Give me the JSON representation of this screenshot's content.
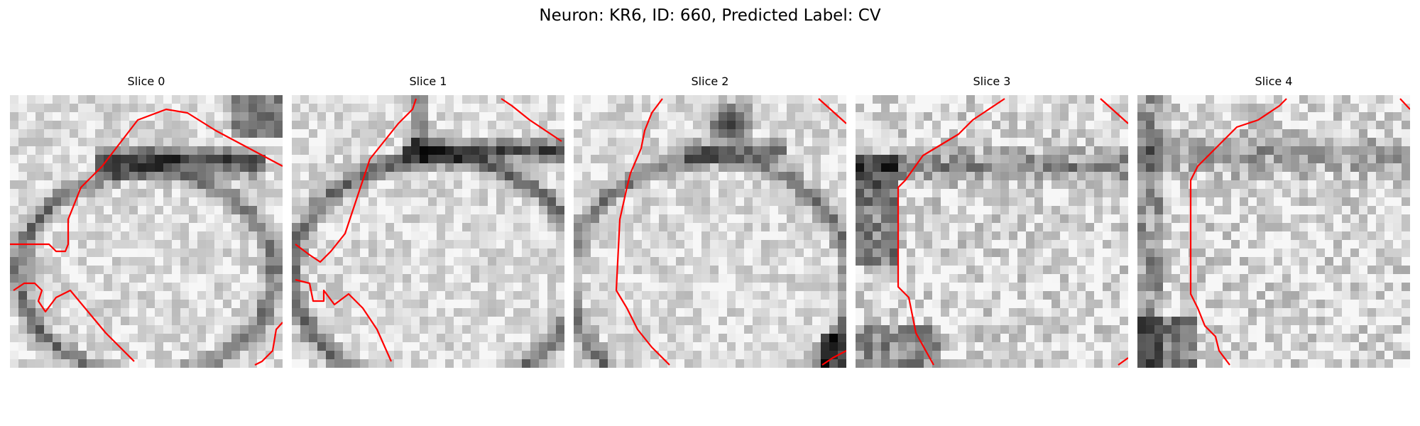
{
  "figure": {
    "title": "Neuron: KR6, ID: 660, Predicted Label: CV"
  },
  "panels": [
    {
      "title": "Slice 0",
      "image": "grayscale-em-slice",
      "overlay": "red-contour"
    },
    {
      "title": "Slice 1",
      "image": "grayscale-em-slice",
      "overlay": "red-contour"
    },
    {
      "title": "Slice 2",
      "image": "grayscale-em-slice",
      "overlay": "red-contour"
    },
    {
      "title": "Slice 3",
      "image": "grayscale-em-slice",
      "overlay": "red-contour"
    },
    {
      "title": "Slice 4",
      "image": "grayscale-em-slice",
      "overlay": "red-contour"
    }
  ],
  "colors": {
    "background": "#ffffff",
    "contour": "#ff0000"
  }
}
